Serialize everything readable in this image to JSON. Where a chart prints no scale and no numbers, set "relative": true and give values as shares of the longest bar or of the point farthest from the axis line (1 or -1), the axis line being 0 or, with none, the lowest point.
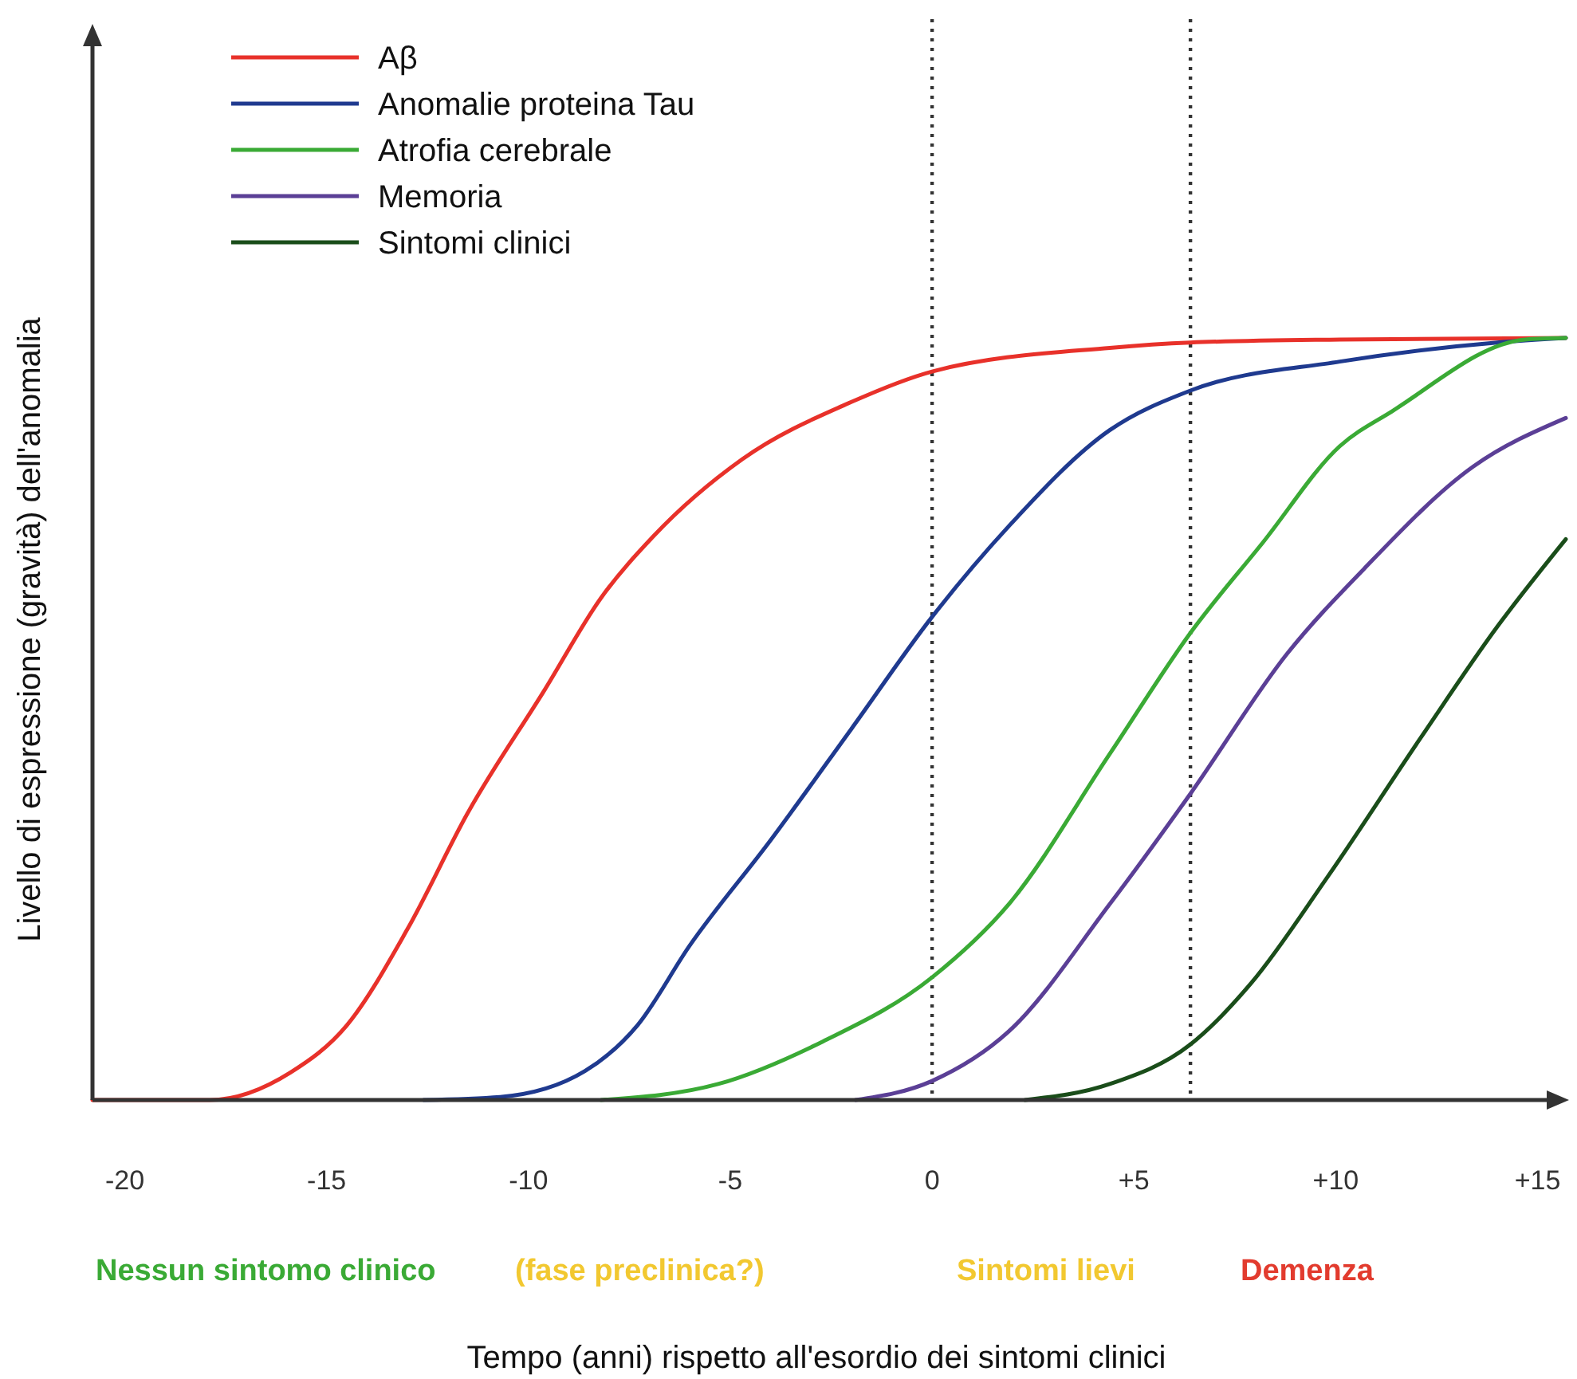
{
  "chart_data": {
    "type": "line",
    "relative": true,
    "xlabel": "Tempo (anni) rispetto all'esordio dei sintomi clinici",
    "ylabel": "Livello di espressione (gravità) dell'anomalia",
    "xlim": [
      -20.8,
      15.7
    ],
    "xticks": [
      -20,
      -15,
      -10,
      -5,
      0,
      {
        "value": 5,
        "label": "+5"
      },
      {
        "value": 10,
        "label": "+10"
      },
      {
        "value": 15,
        "label": "+15"
      }
    ],
    "legend": "top left",
    "grid": false,
    "marker": "none",
    "line_style": "solid",
    "ref_lines": [
      {
        "axis": "x",
        "value": 0,
        "line_style": "dotted",
        "color": "#333333"
      },
      {
        "axis": "x",
        "value": 6.4,
        "line_style": "dotted",
        "color": "#333333"
      }
    ],
    "annotations": [
      "Nessun sintomo clinico",
      "(fase preclinica?)",
      "Sintomi lievi",
      "Demenza"
    ],
    "series": [
      {
        "name": "Aβ",
        "color": "#e8312a",
        "x": [
          -20.8,
          -17.9,
          -15.9,
          -14.5,
          -13.0,
          -11.5,
          -9.6,
          -8.2,
          -6.9,
          -4.7,
          -2.0,
          0,
          4.4,
          6.4,
          10.1,
          15.7
        ],
        "values": [
          0,
          0,
          0.036,
          0.098,
          0.224,
          0.377,
          0.538,
          0.659,
          0.74,
          0.841,
          0.916,
          0.956,
          0.987,
          0.994,
          0.998,
          1.0
        ]
      },
      {
        "name": "Anomalie proteina Tau",
        "color": "#1f3a8f",
        "x": [
          -12.6,
          -10.7,
          -8.6,
          -7.3,
          -6.0,
          -4.0,
          -2.0,
          0,
          1.9,
          4.4,
          6.4,
          10.1,
          14.0,
          15.7
        ],
        "values": [
          0,
          0.004,
          0.038,
          0.098,
          0.203,
          0.341,
          0.487,
          0.634,
          0.753,
          0.879,
          0.931,
          0.969,
          0.994,
          1.0
        ]
      },
      {
        "name": "Atrofia cerebrale",
        "color": "#3aaa35",
        "x": [
          -8.2,
          -5.3,
          -2.7,
          0,
          1.9,
          4.4,
          6.4,
          8.2,
          10.1,
          11.4,
          14.7,
          15.7
        ],
        "values": [
          0,
          0.021,
          0.077,
          0.161,
          0.257,
          0.454,
          0.613,
          0.732,
          0.858,
          0.904,
          0.998,
          1.0
        ]
      },
      {
        "name": "Memoria",
        "color": "#5b3f96",
        "x": [
          -1.9,
          0,
          1.9,
          4.4,
          6.4,
          8.8,
          10.7,
          13.4,
          15.7
        ],
        "values": [
          0,
          0.025,
          0.09,
          0.257,
          0.402,
          0.586,
          0.697,
          0.831,
          0.895
        ]
      },
      {
        "name": "Sintomi clinici",
        "color": "#1a4d1a",
        "x": [
          2.3,
          4.4,
          6.4,
          7.9,
          9.8,
          12.1,
          14.0,
          15.7
        ],
        "values": [
          0,
          0.021,
          0.073,
          0.153,
          0.293,
          0.475,
          0.621,
          0.736
        ]
      }
    ]
  }
}
